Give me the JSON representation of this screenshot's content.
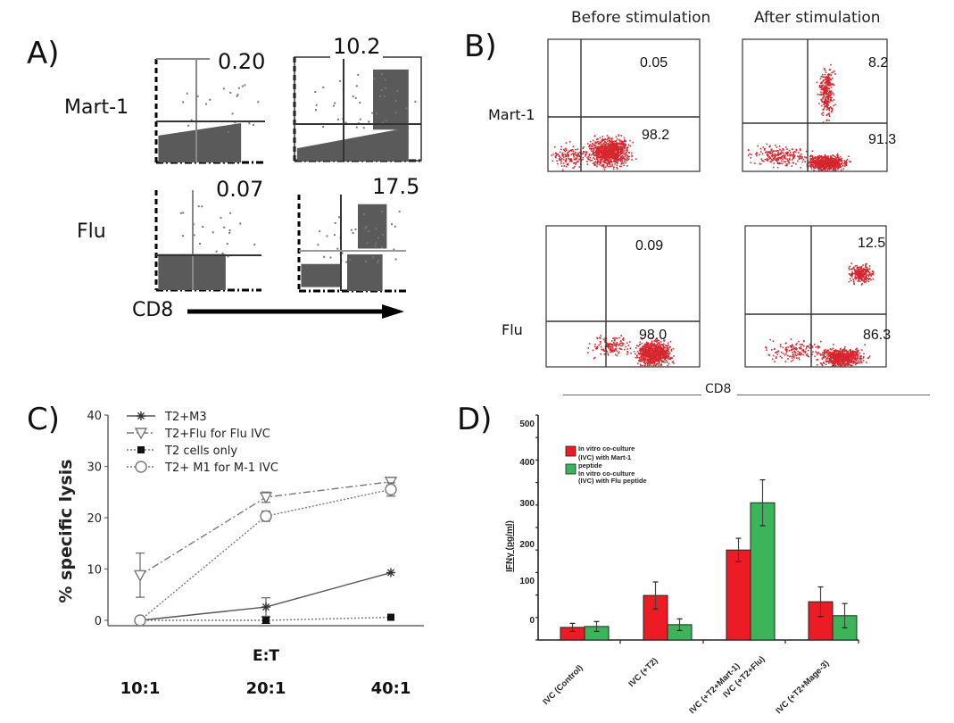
{
  "panels": {
    "A": {
      "label": "A)",
      "rows": [
        "Mart-1",
        "Flu"
      ],
      "plots": [
        {
          "row": "Mart-1",
          "quadrant_value": "0.20"
        },
        {
          "row": "Mart-1",
          "quadrant_value": "10.2"
        },
        {
          "row": "Flu",
          "quadrant_value": "0.07"
        },
        {
          "row": "Flu",
          "quadrant_value": "17.5"
        }
      ],
      "xaxis_label": "CD8"
    },
    "B": {
      "label": "B)",
      "columns": [
        "Before stimulation",
        "After stimulation"
      ],
      "rows": [
        "Mart-1",
        "Flu"
      ],
      "plots": [
        {
          "row": "Mart-1",
          "column": "Before stimulation",
          "upper_right": "0.05",
          "lower_right": "98.2"
        },
        {
          "row": "Mart-1",
          "column": "After stimulation",
          "upper_right": "8.2",
          "lower_right": "91.3"
        },
        {
          "row": "Flu",
          "column": "Before stimulation",
          "upper_right": "0.09",
          "lower_right": "98.0"
        },
        {
          "row": "Flu",
          "column": "After stimulation",
          "upper_right": "12.5",
          "lower_right": "86.3"
        }
      ],
      "xaxis_label": "CD8",
      "dot_color": "#d7262e"
    },
    "C": {
      "label": "C)"
    },
    "D": {
      "label": "D)"
    }
  },
  "chart_data": [
    {
      "panel": "C",
      "type": "line",
      "title": "",
      "xlabel": "E:T",
      "ylabel": "% specific lysis",
      "categories": [
        "10:1",
        "20:1",
        "40:1"
      ],
      "ylim": [
        0,
        40
      ],
      "yticks": [
        0,
        10,
        20,
        30,
        40
      ],
      "grid": false,
      "legend_position": "top-left",
      "series": [
        {
          "name": "T2+M3",
          "marker": "asterisk",
          "line": "solid",
          "values": [
            0,
            2.6,
            9.3
          ],
          "errors": [
            0,
            1.8,
            0.3
          ]
        },
        {
          "name": "T2+Flu for Flu IVC",
          "marker": "triangle-down-open",
          "line": "dashdot",
          "values": [
            8.8,
            24.0,
            27.0
          ],
          "errors": [
            4.3,
            1.0,
            0.7
          ]
        },
        {
          "name": "T2 cells only",
          "marker": "square-filled",
          "line": "dotted",
          "values": [
            0,
            0,
            0.6
          ],
          "errors": [
            0,
            0.6,
            0
          ]
        },
        {
          "name": "T2+ M1 for M-1 IVC",
          "marker": "circle-open",
          "line": "dotted",
          "values": [
            0,
            20.3,
            25.5
          ],
          "errors": [
            0,
            1.0,
            1.3
          ]
        }
      ]
    },
    {
      "panel": "D",
      "type": "bar",
      "title": "",
      "xlabel": "",
      "ylabel": "IFNγ (pg/ml)",
      "categories": [
        "IVC (Control)",
        "IVC (+T2)",
        "IVC (+T2+Mart-1)  IVC (+T2+Flu)",
        "IVC (+T2+Mage-3)"
      ],
      "category_labels": [
        "IVC (Control)",
        "IVC (+T2)",
        "IVC (+T2+Mart-1)",
        "IVC (+T2+Flu)",
        "IVC (+T2+Mage-3)"
      ],
      "ytick_labels": [
        "500",
        "400",
        "300",
        "200",
        "100",
        "0"
      ],
      "ylim": [
        0,
        500
      ],
      "grid": false,
      "legend_position": "top-left",
      "series": [
        {
          "name": "In vitro co-culture (IVC) with Mart-1 peptide",
          "color": "#ed1c24",
          "values": [
            28,
            99,
            200,
            85
          ],
          "errors": [
            9,
            30,
            26,
            33
          ]
        },
        {
          "name": "In vitro co-culture (IVC) with Flu peptide",
          "color": "#3cb55a",
          "values": [
            30,
            34,
            305,
            54
          ],
          "errors": [
            11,
            13,
            51,
            27
          ]
        }
      ],
      "legend_lines": [
        "In vitro co-culture",
        "(IVC) with Mart-1",
        "peptide",
        "In vitro co-culture",
        "(IVC) with Flu peptide"
      ]
    }
  ]
}
